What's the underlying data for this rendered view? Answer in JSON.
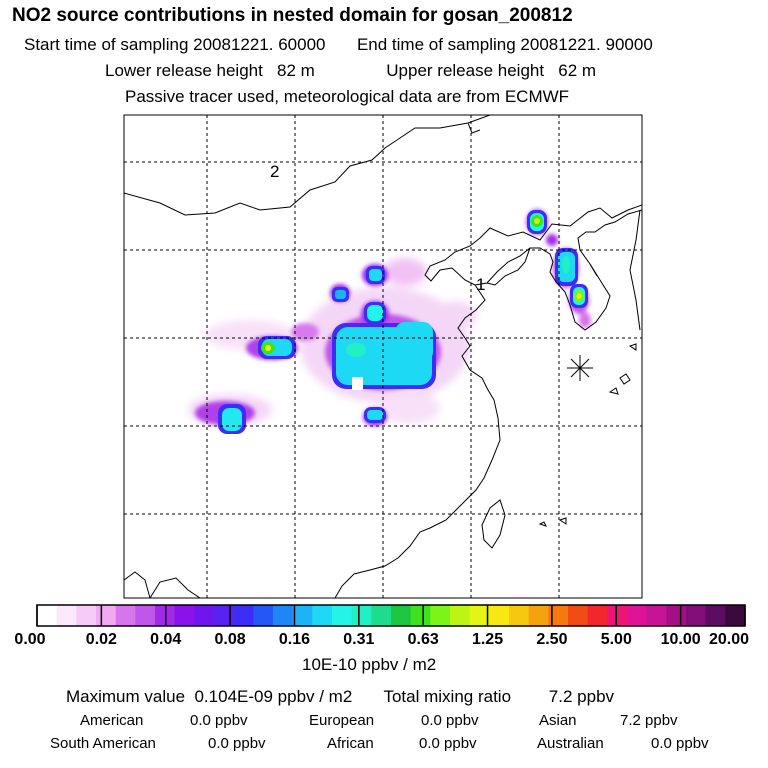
{
  "header": {
    "title": "NO2 source contributions in nested domain for gosan_200812",
    "start_label": "Start time of sampling 20081221. 60000",
    "end_label": "End time of sampling 20081221. 90000",
    "lower_label": "Lower release height   82 m",
    "upper_label": "Upper release height   62 m",
    "tracer_note": "Passive tracer used, meteorological data are from ECMWF"
  },
  "map": {
    "region_labels": [
      "2",
      "1"
    ],
    "receptor_marker": "asterisk-icon"
  },
  "colorbar": {
    "colors": [
      "#ffffff",
      "#fbe8fb",
      "#f6ccf6",
      "#efaaf2",
      "#d775ec",
      "#c057ea",
      "#a12ae6",
      "#8a11ea",
      "#6f16ee",
      "#5a22f0",
      "#3d2df5",
      "#2358f7",
      "#1f86f6",
      "#1eb2f6",
      "#1ed9f4",
      "#22f4ea",
      "#21f0c4",
      "#1edc8e",
      "#1cc640",
      "#40e31b",
      "#7df417",
      "#bdf414",
      "#e4f413",
      "#f6e812",
      "#f8c810",
      "#f6a10f",
      "#f6780e",
      "#f24c14",
      "#f2262b",
      "#ee1477",
      "#de1397",
      "#c81396",
      "#a40f88",
      "#820d79",
      "#5e0b62",
      "#3c0840"
    ],
    "tick_labels": [
      "0.00",
      "0.02",
      "0.04",
      "0.08",
      "0.16",
      "0.31",
      "0.63",
      "1.25",
      "2.50",
      "5.00",
      "10.00",
      "20.00"
    ],
    "unit": "10E-10 ppbv / m2"
  },
  "summary": {
    "max_value": "Maximum value  0.104E-09 ppbv / m2",
    "total_mixing": "Total mixing ratio        7.2 ppbv",
    "regions": [
      {
        "name": "American",
        "value": "0.0 ppbv"
      },
      {
        "name": "European",
        "value": "0.0 ppbv"
      },
      {
        "name": "Asian",
        "value": "7.2 ppbv"
      },
      {
        "name": "South American",
        "value": "0.0 ppbv"
      },
      {
        "name": "African",
        "value": "0.0 ppbv"
      },
      {
        "name": "Australian",
        "value": "0.0 ppbv"
      }
    ]
  }
}
